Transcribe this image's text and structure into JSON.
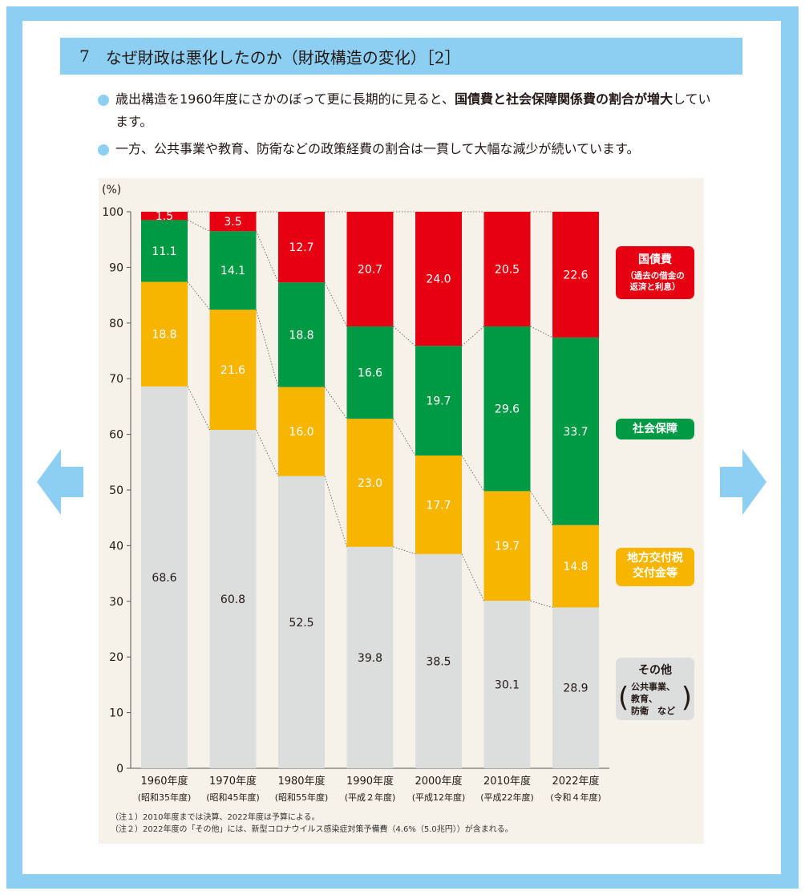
{
  "title": {
    "number": "7",
    "text": "なぜ財政は悪化したのか（財政構造の変化）［2］"
  },
  "bullets": [
    {
      "before": "歳出構造を1960年度にさかのぼって更に長期的に見ると、",
      "bold": "国債費と社会保障関係費の割合が増大",
      "after": "しています。"
    },
    {
      "before": "一方、公共事業や教育、防衛などの政策経費の割合は一貫して大幅な減少が続いています。",
      "bold": "",
      "after": ""
    }
  ],
  "legend": {
    "debt": {
      "label": "国債費",
      "sub1": "（過去の借金の",
      "sub2": "返済と利息）"
    },
    "social": {
      "label": "社会保障"
    },
    "local1": "地方交付税",
    "local2": "交付金等",
    "other": {
      "label": "その他",
      "sub1": "公共事業、",
      "sub2": "教育、",
      "sub3": "防衛　など"
    }
  },
  "notes": [
    "（注１）2010年度までは決算、2022年度は予算による。",
    "（注２）2022年度の「その他」には、新型コロナウイルス感染症対策予備費（4.6%（5.0兆円））が含まれる。"
  ],
  "colors": {
    "debt": "#e60012",
    "social": "#009944",
    "local": "#f8b500",
    "other": "#dcdddd",
    "accent": "#8ccff2"
  },
  "chart_data": {
    "type": "bar",
    "stacked": true,
    "ylabel": "(%)",
    "ylim": [
      0,
      100
    ],
    "yticks": [
      0,
      10,
      20,
      30,
      40,
      50,
      60,
      70,
      80,
      90,
      100
    ],
    "categories": [
      "1960年度",
      "1970年度",
      "1980年度",
      "1990年度",
      "2000年度",
      "2010年度",
      "2022年度"
    ],
    "subcategories": [
      "(昭和35年度)",
      "(昭和45年度)",
      "(昭和55年度)",
      "(平成２年度)",
      "(平成12年度)",
      "(平成22年度)",
      "(令和４年度)"
    ],
    "series": [
      {
        "name": "その他",
        "values": [
          68.6,
          60.8,
          52.5,
          39.8,
          38.5,
          30.1,
          28.9
        ]
      },
      {
        "name": "地方交付税交付金等",
        "values": [
          18.8,
          21.6,
          16.0,
          23.0,
          17.7,
          19.7,
          14.8
        ]
      },
      {
        "name": "社会保障",
        "values": [
          11.1,
          14.1,
          18.8,
          16.6,
          19.7,
          29.6,
          33.7
        ]
      },
      {
        "name": "国債費",
        "values": [
          1.5,
          3.5,
          12.7,
          20.7,
          24.0,
          20.5,
          22.6
        ]
      }
    ]
  }
}
